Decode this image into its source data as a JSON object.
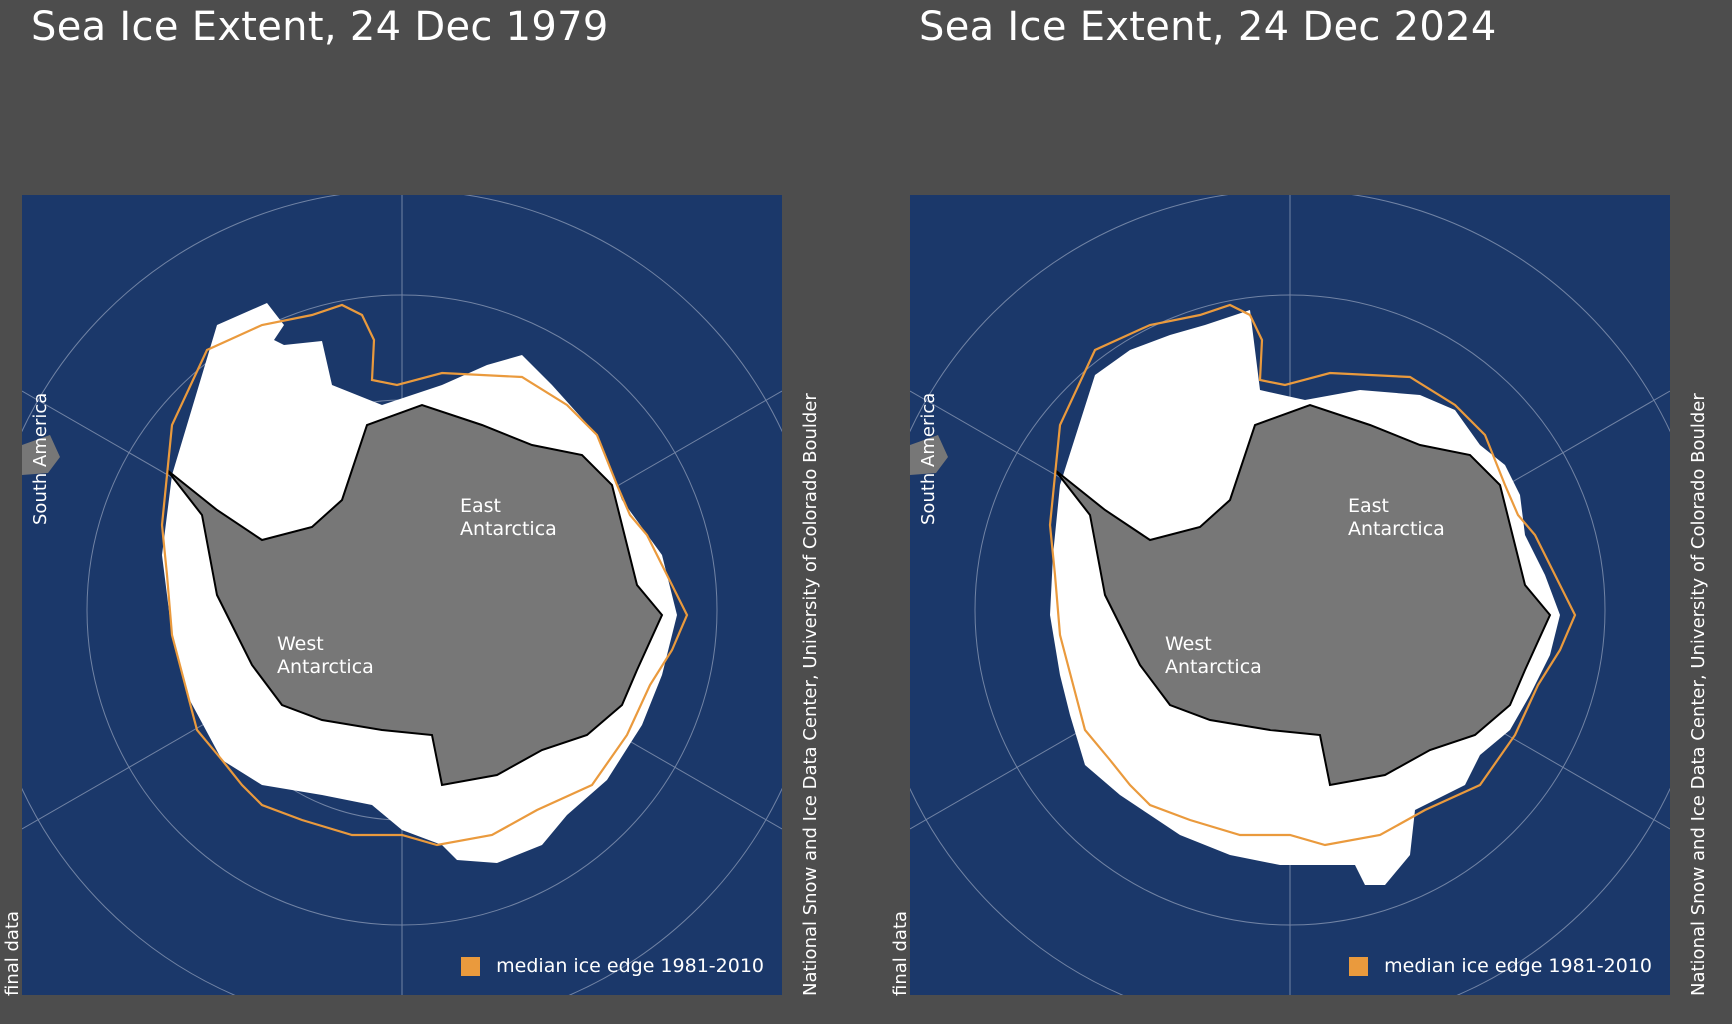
{
  "panels": [
    {
      "title": "Sea Ice Extent, 24 Dec 1979",
      "labels": {
        "east": [
          "East",
          "Antarctica"
        ],
        "west": [
          "West",
          "Antarctica"
        ],
        "south_america": "South America"
      },
      "legend": "median ice edge 1981-2010",
      "status": "final data",
      "credit": "National Snow and Ice Data Center, University of Colorado Boulder"
    },
    {
      "title": "Sea Ice Extent, 24 Dec 2024",
      "labels": {
        "east": [
          "East",
          "Antarctica"
        ],
        "west": [
          "West",
          "Antarctica"
        ],
        "south_america": "South America"
      },
      "legend": "median ice edge 1981-2010",
      "status": "final data",
      "credit": "National Snow and Ice Data Center, University of Colorado Boulder"
    }
  ],
  "colors": {
    "background": "#4d4d4d",
    "ocean": "#1b386a",
    "sea_ice": "#ffffff",
    "land": "#777777",
    "median_edge": "#ea9a3d",
    "graticule": "#8e9cb8"
  }
}
